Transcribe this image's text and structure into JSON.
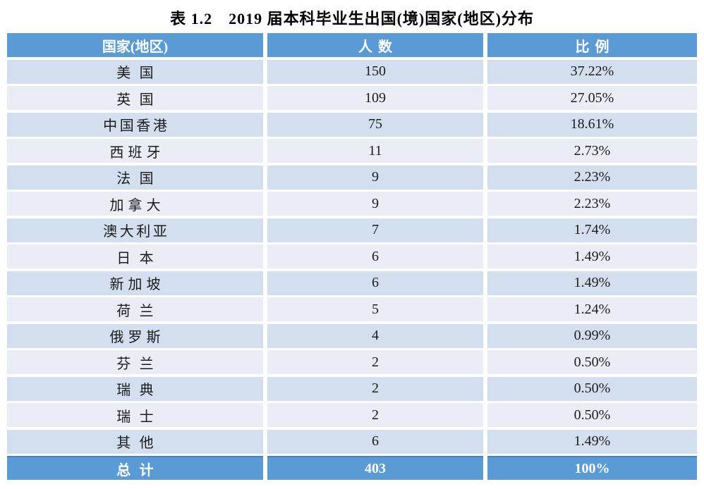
{
  "title": "表 1.2　2019 届本科毕业生出国(境)国家(地区)分布",
  "table": {
    "headers": [
      "国家(地区)",
      "人数",
      "比例"
    ],
    "rows": [
      {
        "country": "美国",
        "count": "150",
        "percent": "37.22%"
      },
      {
        "country": "英国",
        "count": "109",
        "percent": "27.05%"
      },
      {
        "country": "中国香港",
        "count": "75",
        "percent": "18.61%"
      },
      {
        "country": "西班牙",
        "count": "11",
        "percent": "2.73%"
      },
      {
        "country": "法国",
        "count": "9",
        "percent": "2.23%"
      },
      {
        "country": "加拿大",
        "count": "9",
        "percent": "2.23%"
      },
      {
        "country": "澳大利亚",
        "count": "7",
        "percent": "1.74%"
      },
      {
        "country": "日本",
        "count": "6",
        "percent": "1.49%"
      },
      {
        "country": "新加坡",
        "count": "6",
        "percent": "1.49%"
      },
      {
        "country": "荷兰",
        "count": "5",
        "percent": "1.24%"
      },
      {
        "country": "俄罗斯",
        "count": "4",
        "percent": "0.99%"
      },
      {
        "country": "芬兰",
        "count": "2",
        "percent": "0.50%"
      },
      {
        "country": "瑞典",
        "count": "2",
        "percent": "0.50%"
      },
      {
        "country": "瑞士",
        "count": "2",
        "percent": "0.50%"
      },
      {
        "country": "其他",
        "count": "6",
        "percent": "1.49%"
      }
    ],
    "total": {
      "label": "总计",
      "count": "403",
      "percent": "100%"
    }
  },
  "colors": {
    "header_bg": "#5B9BD5",
    "band_dark": "#D3DEEF",
    "band_light": "#EAEDF6",
    "total_top_border": "#4A82B6",
    "header_text": "#FFFFFF",
    "body_text": "#1B1B1B"
  }
}
